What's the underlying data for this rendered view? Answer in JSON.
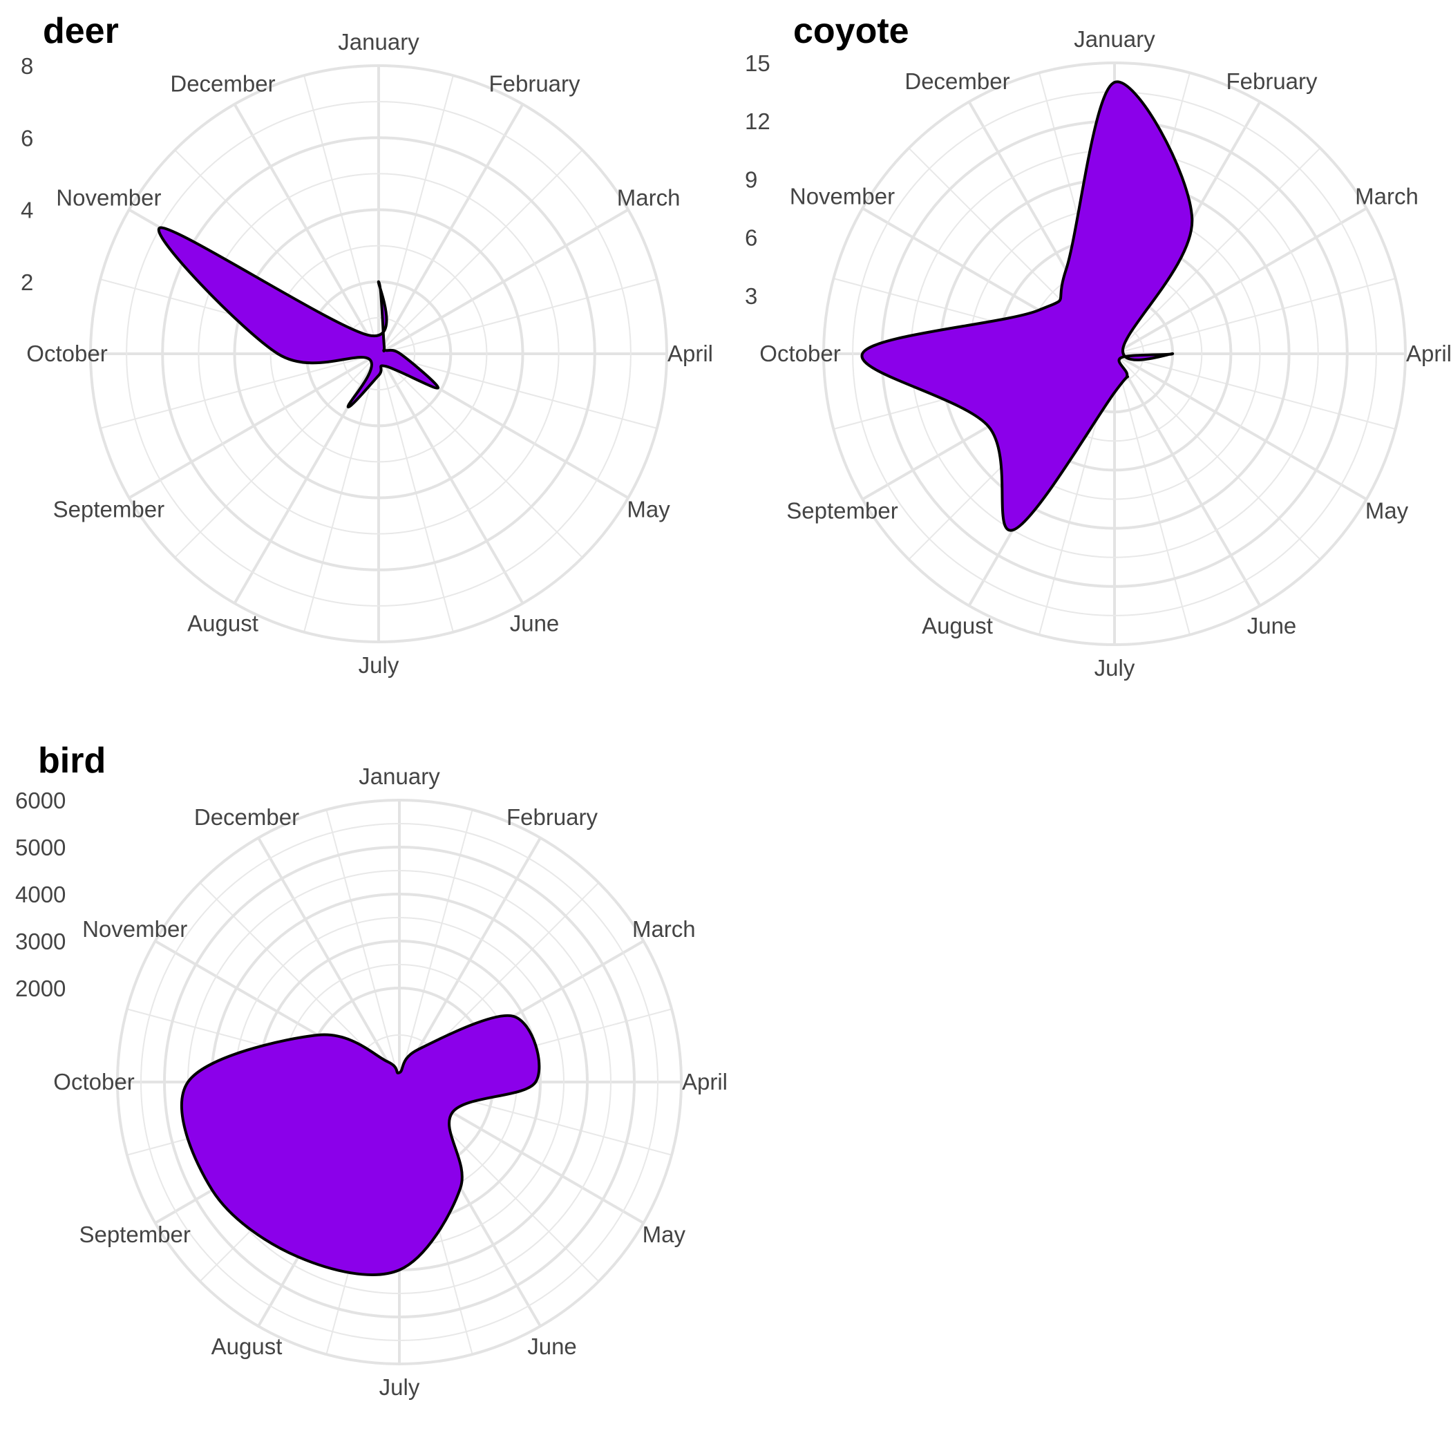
{
  "chart_data": [
    {
      "type": "area",
      "coordinate_system": "polar",
      "title": "deer",
      "categories": [
        "January",
        "February",
        "March",
        "April",
        "May",
        "June",
        "July",
        "August",
        "September",
        "October",
        "November",
        "December"
      ],
      "values": [
        2.0,
        0.3,
        0.2,
        0.6,
        1.9,
        0.4,
        0.6,
        1.7,
        0.3,
        2.8,
        7.0,
        0.6
      ],
      "r_ticks": [
        2,
        4,
        6,
        8
      ],
      "rlim": [
        0,
        8
      ],
      "grid": true,
      "legend": "none",
      "fill_color": "#8b00ea",
      "outline_color": "#000000",
      "grid_color": "#e3e3e3"
    },
    {
      "type": "area",
      "coordinate_system": "polar",
      "title": "coyote",
      "categories": [
        "January",
        "February",
        "March",
        "April",
        "May",
        "June",
        "July",
        "August",
        "September",
        "October",
        "November",
        "December"
      ],
      "values": [
        14.0,
        8.0,
        0.5,
        3.0,
        0.4,
        1.3,
        2.0,
        10.5,
        7.5,
        13.0,
        4.5,
        5.0
      ],
      "r_ticks": [
        3,
        6,
        9,
        12,
        15
      ],
      "rlim": [
        0,
        15
      ],
      "grid": true,
      "legend": "none",
      "fill_color": "#8b00ea",
      "outline_color": "#000000",
      "grid_color": "#e3e3e3"
    },
    {
      "type": "area",
      "coordinate_system": "polar",
      "title": "bird",
      "categories": [
        "January",
        "February",
        "March",
        "April",
        "May",
        "June",
        "July",
        "August",
        "September",
        "October",
        "November",
        "December"
      ],
      "values": [
        200,
        800,
        2800,
        2900,
        1300,
        2600,
        4000,
        4300,
        4600,
        4500,
        2000,
        500
      ],
      "r_ticks": [
        2000,
        3000,
        4000,
        5000,
        6000
      ],
      "rlim": [
        0,
        6000
      ],
      "grid": true,
      "legend": "none",
      "fill_color": "#8b00ea",
      "outline_color": "#000000",
      "grid_color": "#e3e3e3"
    }
  ]
}
